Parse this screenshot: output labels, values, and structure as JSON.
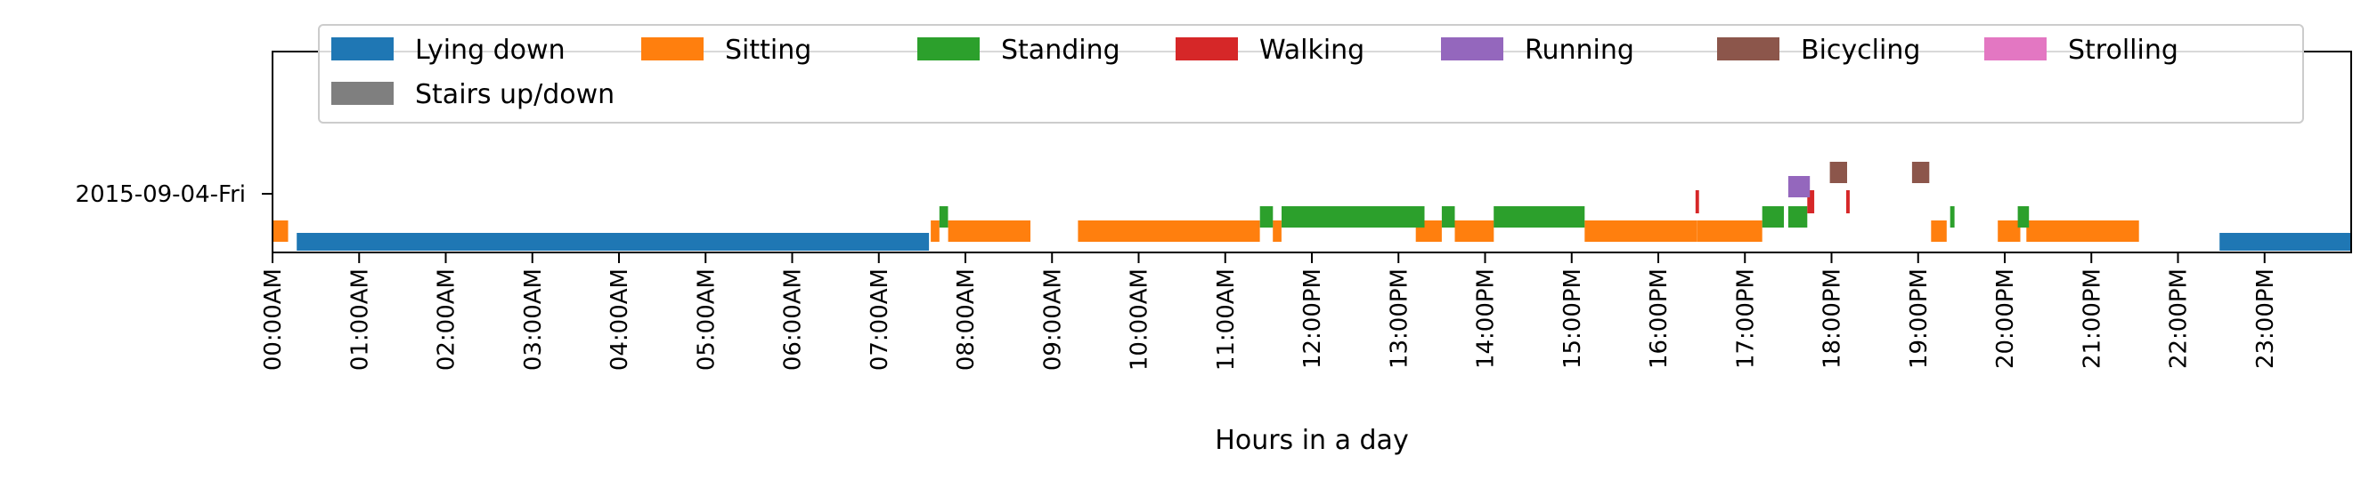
{
  "chart_data": {
    "type": "bar",
    "orientation": "horizontal-timeline",
    "title": "",
    "xlabel": "Hours in a day",
    "ylabel": "",
    "xlim": [
      0,
      24
    ],
    "y_categories": [
      "2015-09-04-Fri"
    ],
    "x_ticks": [
      "00:00AM",
      "01:00AM",
      "02:00AM",
      "03:00AM",
      "04:00AM",
      "05:00AM",
      "06:00AM",
      "07:00AM",
      "08:00AM",
      "09:00AM",
      "10:00AM",
      "11:00AM",
      "12:00PM",
      "13:00PM",
      "14:00PM",
      "15:00PM",
      "16:00PM",
      "17:00PM",
      "18:00PM",
      "19:00PM",
      "20:00PM",
      "21:00PM",
      "22:00PM",
      "23:00PM"
    ],
    "grid": false,
    "legend_position": "top",
    "legend": [
      "Lying down",
      "Sitting",
      "Standing",
      "Walking",
      "Running",
      "Bicycling",
      "Strolling",
      "Stairs up/down"
    ],
    "series": [
      {
        "name": "Lying down",
        "color": "#1f77b4",
        "segments": [
          [
            0.28,
            7.58
          ],
          [
            22.48,
            24.0
          ]
        ]
      },
      {
        "name": "Sitting",
        "color": "#ff7f0e",
        "segments": [
          [
            0.0,
            0.18
          ],
          [
            7.6,
            7.7
          ],
          [
            7.8,
            8.75
          ],
          [
            9.3,
            11.4
          ],
          [
            11.55,
            11.65
          ],
          [
            13.2,
            13.5
          ],
          [
            13.65,
            14.1
          ],
          [
            15.15,
            16.45
          ],
          [
            16.45,
            17.2
          ],
          [
            19.15,
            19.33
          ],
          [
            19.92,
            20.18
          ],
          [
            20.25,
            21.55
          ]
        ]
      },
      {
        "name": "Standing",
        "color": "#2ca02c",
        "segments": [
          [
            7.7,
            7.8
          ],
          [
            11.4,
            11.55
          ],
          [
            11.65,
            13.3
          ],
          [
            13.5,
            13.65
          ],
          [
            14.1,
            15.15
          ],
          [
            17.2,
            17.45
          ],
          [
            17.5,
            17.72
          ],
          [
            19.37,
            19.42
          ],
          [
            20.15,
            20.28
          ]
        ]
      },
      {
        "name": "Walking",
        "color": "#d62728",
        "segments": [
          [
            16.43,
            16.47
          ],
          [
            17.72,
            17.8
          ],
          [
            18.17,
            18.21
          ]
        ]
      },
      {
        "name": "Running",
        "color": "#9467bd",
        "segments": [
          [
            17.5,
            17.75
          ]
        ]
      },
      {
        "name": "Bicycling",
        "color": "#8c564b",
        "segments": [
          [
            17.98,
            18.18
          ],
          [
            18.93,
            19.13
          ]
        ]
      },
      {
        "name": "Strolling",
        "color": "#e377c2",
        "segments": []
      },
      {
        "name": "Stairs up/down",
        "color": "#7f7f7f",
        "segments": []
      }
    ]
  }
}
